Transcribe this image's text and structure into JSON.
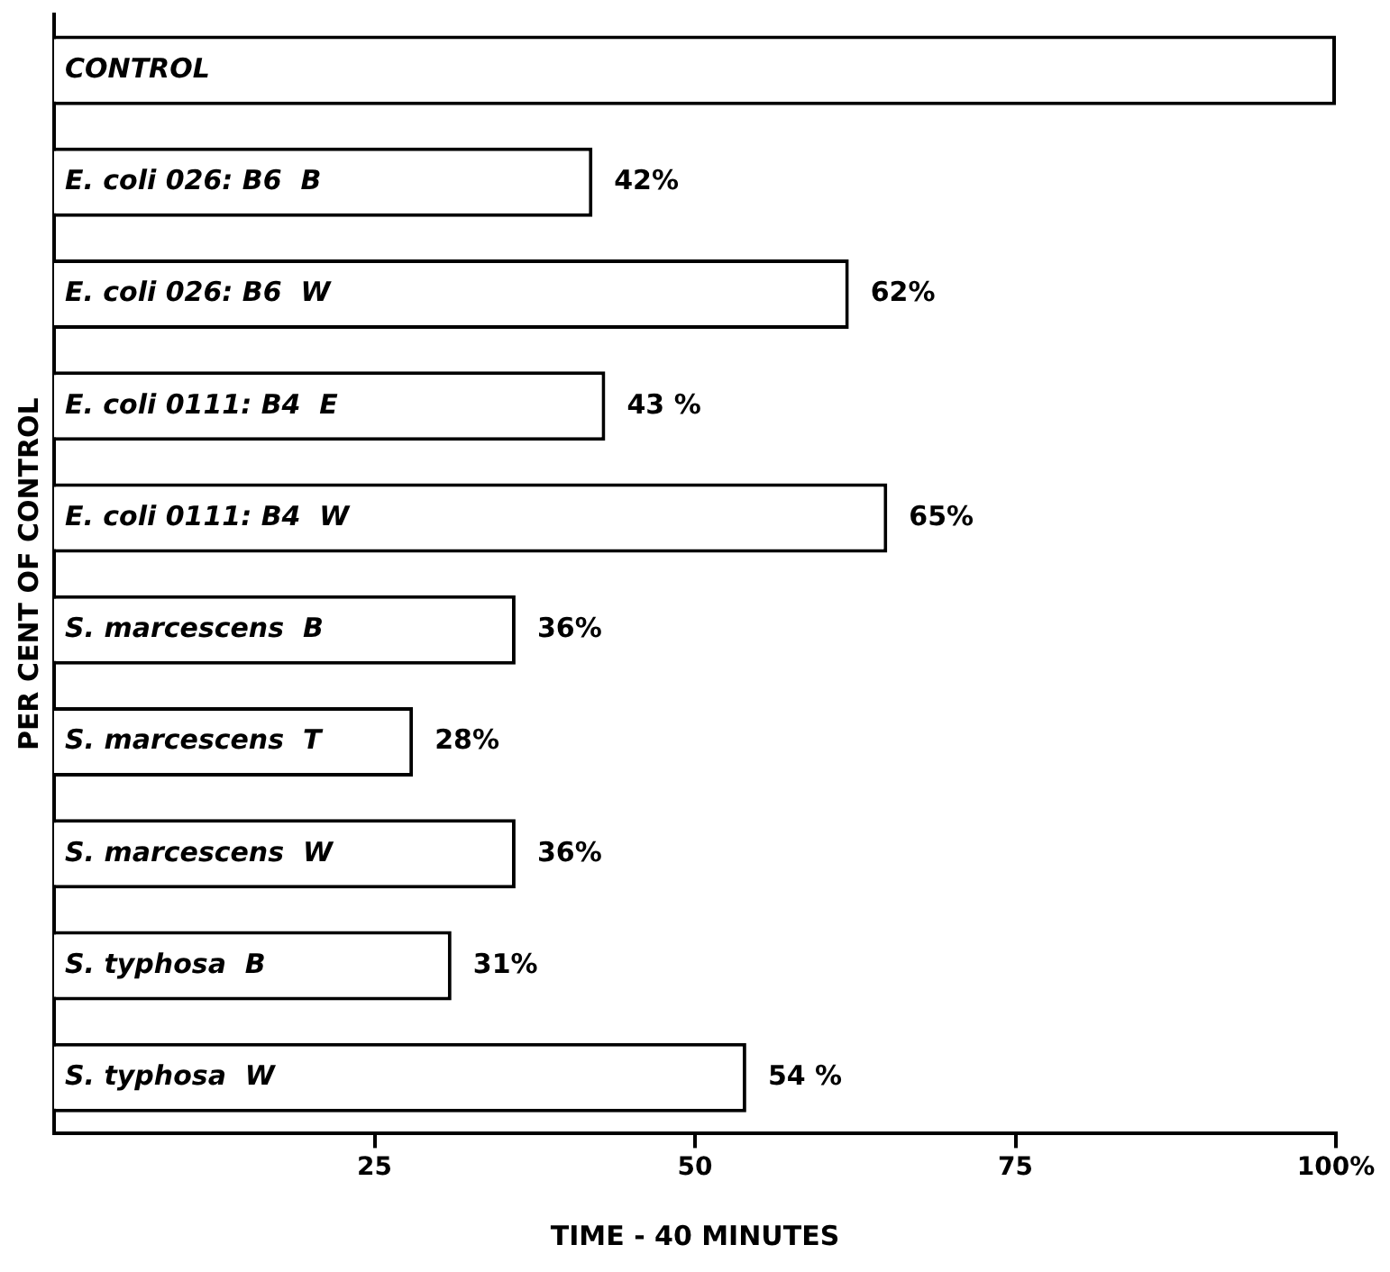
{
  "chart_data": {
    "type": "bar",
    "orientation": "horizontal",
    "xlabel": "TIME - 40 MINUTES",
    "ylabel": "PER CENT OF CONTROL",
    "categories": [
      "CONTROL",
      "E. coli 026: B6  B",
      "E. coli 026: B6  W",
      "E. coli 0111: B4  E",
      "E. coli 0111: B4  W",
      "S. marcescens  B",
      "S. marcescens  T",
      "S. marcescens  W",
      "S. typhosa  B",
      "S. typhosa  W"
    ],
    "values": [
      100,
      42,
      62,
      43,
      65,
      36,
      28,
      36,
      31,
      54
    ],
    "value_labels": [
      null,
      "42%",
      "62%",
      "43 %",
      "65%",
      "36%",
      "28%",
      "36%",
      "31%",
      "54 %"
    ],
    "color": "#ffffff",
    "xlim": [
      0,
      100
    ],
    "xticks": [
      25,
      50,
      75,
      {
        "value": 100,
        "label": "100%"
      }
    ],
    "grid": false,
    "legend": false
  }
}
